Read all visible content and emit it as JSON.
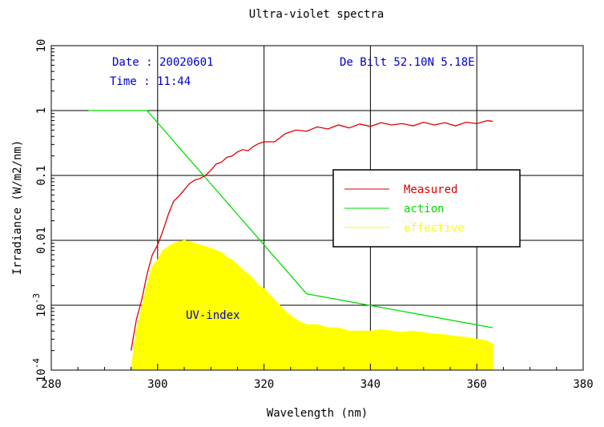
{
  "chart_data": {
    "type": "line",
    "title": "Ultra-violet spectra",
    "xlabel": "Wavelength (nm)",
    "ylabel": "Irradiance (W/m2/nm)",
    "xlim": [
      280,
      380
    ],
    "ylim": [
      0.0001,
      10
    ],
    "yscale": "log",
    "grid": true,
    "legend_position": "right",
    "x_ticks": [
      "280",
      "300",
      "320",
      "340",
      "360",
      "380"
    ],
    "y_ticks": [
      {
        "base": "10",
        "exp": "-4"
      },
      {
        "base": "10",
        "exp": "-3"
      },
      {
        "base": "0.01",
        "exp": ""
      },
      {
        "base": "0.1",
        "exp": ""
      },
      {
        "base": "1",
        "exp": ""
      },
      {
        "base": "10",
        "exp": ""
      }
    ],
    "info": {
      "date": "Date : 20020601",
      "time": "Time : 11:44",
      "station": "De Bilt  52.10N  5.18E"
    },
    "annotation": "UV-index",
    "series": [
      {
        "name": "Measured",
        "color": "#dd0000",
        "x": [
          295,
          296,
          297,
          298,
          299,
          300,
          301,
          302,
          303,
          304,
          305,
          306,
          307,
          308,
          309,
          310,
          311,
          312,
          313,
          314,
          315,
          316,
          317,
          318,
          319,
          320,
          322,
          324,
          326,
          328,
          330,
          332,
          334,
          336,
          338,
          340,
          342,
          344,
          346,
          348,
          350,
          352,
          354,
          356,
          358,
          360,
          362,
          363
        ],
        "y": [
          0.0002,
          0.0006,
          0.0012,
          0.003,
          0.006,
          0.0085,
          0.014,
          0.025,
          0.04,
          0.048,
          0.06,
          0.075,
          0.085,
          0.09,
          0.1,
          0.12,
          0.15,
          0.16,
          0.19,
          0.2,
          0.23,
          0.25,
          0.24,
          0.28,
          0.31,
          0.33,
          0.33,
          0.44,
          0.5,
          0.48,
          0.56,
          0.52,
          0.6,
          0.54,
          0.62,
          0.57,
          0.65,
          0.6,
          0.63,
          0.58,
          0.66,
          0.6,
          0.65,
          0.58,
          0.66,
          0.63,
          0.7,
          0.68
        ]
      },
      {
        "name": "action",
        "color": "#00dd00",
        "x": [
          287,
          298,
          328,
          363
        ],
        "y": [
          1,
          1,
          0.0015,
          0.00045
        ]
      },
      {
        "name": "effective",
        "color": "#ffff00",
        "x": [
          295,
          296,
          297,
          298,
          299,
          300,
          301,
          302,
          303,
          304,
          305,
          306,
          307,
          308,
          309,
          310,
          311,
          312,
          313,
          314,
          315,
          316,
          317,
          318,
          319,
          320,
          322,
          324,
          326,
          328,
          330,
          332,
          334,
          336,
          338,
          340,
          342,
          344,
          346,
          348,
          350,
          352,
          354,
          356,
          358,
          360,
          362,
          363
        ],
        "y": [
          0.0001,
          0.0004,
          0.0009,
          0.002,
          0.004,
          0.005,
          0.007,
          0.008,
          0.009,
          0.0095,
          0.01,
          0.0095,
          0.009,
          0.0085,
          0.008,
          0.0075,
          0.007,
          0.0065,
          0.0055,
          0.005,
          0.0042,
          0.0035,
          0.003,
          0.0025,
          0.002,
          0.0018,
          0.0012,
          0.0008,
          0.0006,
          0.0005,
          0.0005,
          0.00045,
          0.00045,
          0.0004,
          0.0004,
          0.0004,
          0.00042,
          0.0004,
          0.00038,
          0.0004,
          0.00038,
          0.00036,
          0.00035,
          0.00033,
          0.00032,
          0.0003,
          0.00028,
          0.00025
        ]
      }
    ]
  }
}
